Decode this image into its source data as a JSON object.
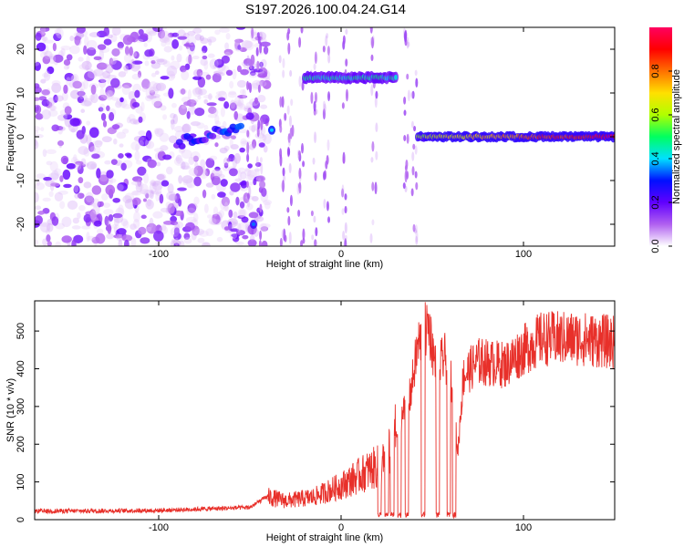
{
  "title": "S197.2026.100.04.24.G14",
  "chart_data": [
    {
      "type": "heatmap",
      "xlabel": "Height of straight line (km)",
      "ylabel": "Frequency (Hz)",
      "xlim": [
        -168,
        150
      ],
      "ylim": [
        -25,
        25
      ],
      "xticks": [
        -100,
        0,
        100
      ],
      "yticks": [
        -20,
        -10,
        0,
        10,
        20
      ],
      "colorbar": {
        "label": "Normalized spectral amplitude",
        "range": [
          0,
          1
        ],
        "ticks": [
          "0.0",
          "0.2",
          "0.4",
          "0.6",
          "0.8"
        ],
        "colormap": [
          "#ffffff",
          "#b060f0",
          "#6000ff",
          "#0010ff",
          "#00e0ff",
          "#00ff60",
          "#b0ff00",
          "#ffe000",
          "#ff7000",
          "#ff0000",
          "#ff0060"
        ]
      },
      "features": [
        {
          "name": "noise scatter",
          "x_range": [
            -168,
            -40
          ],
          "y_range": [
            -25,
            25
          ],
          "amplitude": 0.15
        },
        {
          "name": "short segment",
          "x_range": [
            -90,
            -55
          ],
          "y_range": [
            -3,
            3
          ],
          "amplitude": 0.3
        },
        {
          "name": "blip",
          "x": -38,
          "y": 1.5,
          "amplitude": 0.3
        },
        {
          "name": "blip",
          "x": -48,
          "y": -20,
          "amplitude": 0.25
        },
        {
          "name": "upper line",
          "x_range": [
            -20,
            30
          ],
          "y": 13.5,
          "amplitude": 0.45
        },
        {
          "name": "lower line",
          "x_range": [
            42,
            150
          ],
          "y": 0,
          "amplitude": 0.6
        }
      ]
    },
    {
      "type": "line",
      "xlabel": "Height of straight line (km)",
      "ylabel": "SNR (10 * v/v)",
      "xlim": [
        -168,
        150
      ],
      "ylim": [
        0,
        580
      ],
      "xticks": [
        -100,
        0,
        100
      ],
      "yticks": [
        0,
        100,
        200,
        300,
        400,
        500
      ],
      "color": "#e8302a",
      "key_points": [
        {
          "x": -168,
          "y": 20
        },
        {
          "x": -100,
          "y": 22
        },
        {
          "x": -50,
          "y": 30
        },
        {
          "x": -40,
          "y": 60
        },
        {
          "x": -30,
          "y": 50
        },
        {
          "x": -15,
          "y": 60
        },
        {
          "x": 0,
          "y": 90
        },
        {
          "x": 15,
          "y": 130
        },
        {
          "x": 25,
          "y": 150
        },
        {
          "x": 32,
          "y": 260
        },
        {
          "x": 38,
          "y": 330
        },
        {
          "x": 42,
          "y": 460
        },
        {
          "x": 48,
          "y": 520
        },
        {
          "x": 52,
          "y": 400
        },
        {
          "x": 57,
          "y": 430
        },
        {
          "x": 60,
          "y": 380
        },
        {
          "x": 64,
          "y": 180
        },
        {
          "x": 67,
          "y": 380
        },
        {
          "x": 75,
          "y": 420
        },
        {
          "x": 90,
          "y": 410
        },
        {
          "x": 100,
          "y": 450
        },
        {
          "x": 110,
          "y": 480
        },
        {
          "x": 130,
          "y": 480
        },
        {
          "x": 150,
          "y": 470
        }
      ]
    }
  ]
}
